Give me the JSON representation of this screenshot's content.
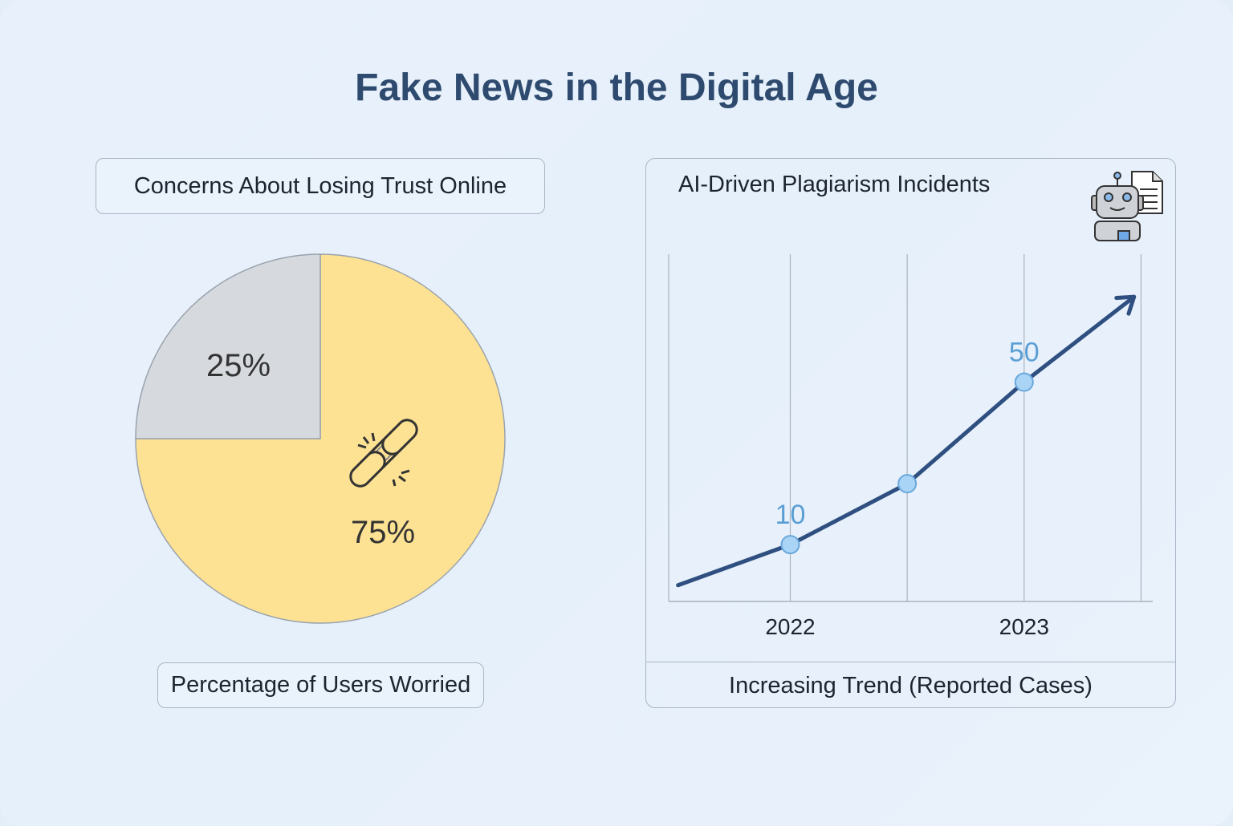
{
  "title": "Fake News in the Digital Age",
  "colors": {
    "title": "#2e4a6e",
    "pie_major": "#fde293",
    "pie_minor": "#d6dadf",
    "line": "#2e4f80",
    "marker": "#a9d4f5",
    "data_label": "#5a9fd4"
  },
  "chart_data": [
    {
      "type": "pie",
      "title": "Concerns About Losing Trust Online",
      "caption": "Percentage of Users Worried",
      "slices": [
        {
          "value": 75,
          "label": "75%",
          "color": "#fde293",
          "icon": "broken-chain-icon"
        },
        {
          "value": 25,
          "label": "25%",
          "color": "#d6dadf"
        }
      ]
    },
    {
      "type": "line",
      "title": "AI-Driven Plagiarism Incidents",
      "caption": "Increasing Trend (Reported Cases)",
      "icon": "robot-document-icon",
      "x_ticks": [
        "2022",
        "2023"
      ],
      "x_tick_values": [
        2022,
        2023
      ],
      "xlim": [
        2021.48,
        2023.55
      ],
      "ylim": [
        -4,
        81.5
      ],
      "grid": "vertical",
      "points": [
        {
          "x": 2021.52,
          "y": 0
        },
        {
          "x": 2022,
          "y": 10,
          "label": "10",
          "marker": true
        },
        {
          "x": 2022.5,
          "y": 25,
          "marker": true
        },
        {
          "x": 2023,
          "y": 50,
          "label": "50",
          "marker": true
        },
        {
          "x": 2023.47,
          "y": 71
        }
      ],
      "end_arrow": true
    }
  ]
}
